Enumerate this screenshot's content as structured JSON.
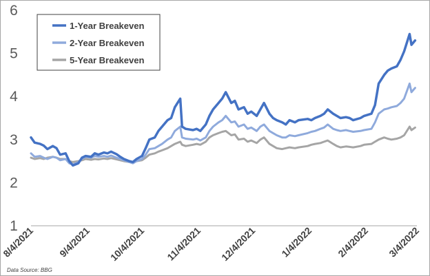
{
  "chart_data": {
    "type": "line",
    "source_note": "Data Source: BBG",
    "ylim": [
      1,
      6
    ],
    "y_ticks": [
      "1",
      "2",
      "3",
      "4",
      "5",
      "6"
    ],
    "x_ticks": [
      "8/4/2021",
      "9/4/2021",
      "10/4/2021",
      "11/4/2021",
      "12/4/2021",
      "1/4/2022",
      "2/4/2022",
      "3/4/2022"
    ],
    "grid": false,
    "legend_position": "top-left",
    "series": [
      {
        "name": "1-Year Breakeven",
        "color": "#4472c4",
        "points": [
          [
            "2021-08-04",
            3.05
          ],
          [
            "2021-08-06",
            2.93
          ],
          [
            "2021-08-09",
            2.9
          ],
          [
            "2021-08-11",
            2.86
          ],
          [
            "2021-08-13",
            2.78
          ],
          [
            "2021-08-16",
            2.85
          ],
          [
            "2021-08-18",
            2.8
          ],
          [
            "2021-08-20",
            2.65
          ],
          [
            "2021-08-23",
            2.68
          ],
          [
            "2021-08-25",
            2.5
          ],
          [
            "2021-08-27",
            2.4
          ],
          [
            "2021-08-30",
            2.45
          ],
          [
            "2021-09-01",
            2.58
          ],
          [
            "2021-09-03",
            2.62
          ],
          [
            "2021-09-06",
            2.6
          ],
          [
            "2021-09-08",
            2.68
          ],
          [
            "2021-09-10",
            2.65
          ],
          [
            "2021-09-13",
            2.7
          ],
          [
            "2021-09-15",
            2.68
          ],
          [
            "2021-09-17",
            2.72
          ],
          [
            "2021-09-20",
            2.66
          ],
          [
            "2021-09-22",
            2.6
          ],
          [
            "2021-09-24",
            2.55
          ],
          [
            "2021-09-27",
            2.5
          ],
          [
            "2021-09-29",
            2.48
          ],
          [
            "2021-10-01",
            2.55
          ],
          [
            "2021-10-04",
            2.62
          ],
          [
            "2021-10-06",
            2.8
          ],
          [
            "2021-10-08",
            3.0
          ],
          [
            "2021-10-11",
            3.05
          ],
          [
            "2021-10-13",
            3.2
          ],
          [
            "2021-10-15",
            3.3
          ],
          [
            "2021-10-18",
            3.45
          ],
          [
            "2021-10-20",
            3.5
          ],
          [
            "2021-10-22",
            3.75
          ],
          [
            "2021-10-25",
            3.95
          ],
          [
            "2021-10-26",
            3.3
          ],
          [
            "2021-10-28",
            3.25
          ],
          [
            "2021-11-01",
            3.22
          ],
          [
            "2021-11-03",
            3.25
          ],
          [
            "2021-11-05",
            3.2
          ],
          [
            "2021-11-08",
            3.35
          ],
          [
            "2021-11-10",
            3.55
          ],
          [
            "2021-11-12",
            3.7
          ],
          [
            "2021-11-15",
            3.85
          ],
          [
            "2021-11-17",
            3.95
          ],
          [
            "2021-11-19",
            4.1
          ],
          [
            "2021-11-22",
            3.85
          ],
          [
            "2021-11-24",
            3.9
          ],
          [
            "2021-11-26",
            3.7
          ],
          [
            "2021-11-29",
            3.75
          ],
          [
            "2021-12-01",
            3.6
          ],
          [
            "2021-12-03",
            3.65
          ],
          [
            "2021-12-06",
            3.55
          ],
          [
            "2021-12-08",
            3.7
          ],
          [
            "2021-12-10",
            3.85
          ],
          [
            "2021-12-13",
            3.6
          ],
          [
            "2021-12-15",
            3.5
          ],
          [
            "2021-12-17",
            3.45
          ],
          [
            "2021-12-20",
            3.4
          ],
          [
            "2021-12-22",
            3.35
          ],
          [
            "2021-12-24",
            3.45
          ],
          [
            "2021-12-27",
            3.4
          ],
          [
            "2021-12-29",
            3.45
          ],
          [
            "2022-01-03",
            3.48
          ],
          [
            "2022-01-05",
            3.45
          ],
          [
            "2022-01-07",
            3.5
          ],
          [
            "2022-01-10",
            3.55
          ],
          [
            "2022-01-12",
            3.6
          ],
          [
            "2022-01-14",
            3.7
          ],
          [
            "2022-01-17",
            3.6
          ],
          [
            "2022-01-19",
            3.55
          ],
          [
            "2022-01-21",
            3.5
          ],
          [
            "2022-01-24",
            3.52
          ],
          [
            "2022-01-26",
            3.5
          ],
          [
            "2022-01-28",
            3.45
          ],
          [
            "2022-02-01",
            3.5
          ],
          [
            "2022-02-03",
            3.55
          ],
          [
            "2022-02-07",
            3.6
          ],
          [
            "2022-02-09",
            3.8
          ],
          [
            "2022-02-11",
            4.3
          ],
          [
            "2022-02-14",
            4.5
          ],
          [
            "2022-02-16",
            4.6
          ],
          [
            "2022-02-18",
            4.65
          ],
          [
            "2022-02-21",
            4.7
          ],
          [
            "2022-02-23",
            4.85
          ],
          [
            "2022-02-25",
            5.05
          ],
          [
            "2022-02-28",
            5.45
          ],
          [
            "2022-03-01",
            5.2
          ],
          [
            "2022-03-03",
            5.3
          ]
        ]
      },
      {
        "name": "2-Year Breakeven",
        "color": "#8faadc",
        "points": [
          [
            "2021-08-04",
            2.68
          ],
          [
            "2021-08-06",
            2.6
          ],
          [
            "2021-08-09",
            2.62
          ],
          [
            "2021-08-11",
            2.58
          ],
          [
            "2021-08-13",
            2.55
          ],
          [
            "2021-08-16",
            2.6
          ],
          [
            "2021-08-18",
            2.58
          ],
          [
            "2021-08-20",
            2.52
          ],
          [
            "2021-08-23",
            2.55
          ],
          [
            "2021-08-25",
            2.45
          ],
          [
            "2021-08-27",
            2.42
          ],
          [
            "2021-08-30",
            2.48
          ],
          [
            "2021-09-01",
            2.55
          ],
          [
            "2021-09-03",
            2.6
          ],
          [
            "2021-09-06",
            2.58
          ],
          [
            "2021-09-08",
            2.62
          ],
          [
            "2021-09-10",
            2.6
          ],
          [
            "2021-09-13",
            2.62
          ],
          [
            "2021-09-15",
            2.6
          ],
          [
            "2021-09-17",
            2.63
          ],
          [
            "2021-09-20",
            2.58
          ],
          [
            "2021-09-22",
            2.55
          ],
          [
            "2021-09-24",
            2.52
          ],
          [
            "2021-09-27",
            2.48
          ],
          [
            "2021-09-29",
            2.45
          ],
          [
            "2021-10-01",
            2.5
          ],
          [
            "2021-10-04",
            2.55
          ],
          [
            "2021-10-06",
            2.65
          ],
          [
            "2021-10-08",
            2.78
          ],
          [
            "2021-10-11",
            2.8
          ],
          [
            "2021-10-13",
            2.85
          ],
          [
            "2021-10-15",
            2.9
          ],
          [
            "2021-10-18",
            3.0
          ],
          [
            "2021-10-20",
            3.05
          ],
          [
            "2021-10-22",
            3.2
          ],
          [
            "2021-10-25",
            3.3
          ],
          [
            "2021-10-26",
            3.05
          ],
          [
            "2021-10-28",
            3.02
          ],
          [
            "2021-11-01",
            3.0
          ],
          [
            "2021-11-03",
            3.02
          ],
          [
            "2021-11-05",
            2.98
          ],
          [
            "2021-11-08",
            3.05
          ],
          [
            "2021-11-10",
            3.2
          ],
          [
            "2021-11-12",
            3.3
          ],
          [
            "2021-11-15",
            3.4
          ],
          [
            "2021-11-17",
            3.45
          ],
          [
            "2021-11-19",
            3.55
          ],
          [
            "2021-11-22",
            3.4
          ],
          [
            "2021-11-24",
            3.42
          ],
          [
            "2021-11-26",
            3.3
          ],
          [
            "2021-11-29",
            3.35
          ],
          [
            "2021-12-01",
            3.25
          ],
          [
            "2021-12-03",
            3.28
          ],
          [
            "2021-12-06",
            3.2
          ],
          [
            "2021-12-08",
            3.3
          ],
          [
            "2021-12-10",
            3.35
          ],
          [
            "2021-12-13",
            3.2
          ],
          [
            "2021-12-15",
            3.15
          ],
          [
            "2021-12-17",
            3.1
          ],
          [
            "2021-12-20",
            3.05
          ],
          [
            "2021-12-22",
            3.05
          ],
          [
            "2021-12-24",
            3.1
          ],
          [
            "2021-12-27",
            3.08
          ],
          [
            "2021-12-29",
            3.1
          ],
          [
            "2022-01-03",
            3.15
          ],
          [
            "2022-01-05",
            3.18
          ],
          [
            "2022-01-07",
            3.2
          ],
          [
            "2022-01-10",
            3.25
          ],
          [
            "2022-01-12",
            3.28
          ],
          [
            "2022-01-14",
            3.35
          ],
          [
            "2022-01-17",
            3.25
          ],
          [
            "2022-01-19",
            3.22
          ],
          [
            "2022-01-21",
            3.2
          ],
          [
            "2022-01-24",
            3.22
          ],
          [
            "2022-01-26",
            3.2
          ],
          [
            "2022-01-28",
            3.18
          ],
          [
            "2022-02-01",
            3.2
          ],
          [
            "2022-02-03",
            3.22
          ],
          [
            "2022-02-07",
            3.25
          ],
          [
            "2022-02-09",
            3.4
          ],
          [
            "2022-02-11",
            3.6
          ],
          [
            "2022-02-14",
            3.7
          ],
          [
            "2022-02-16",
            3.72
          ],
          [
            "2022-02-18",
            3.75
          ],
          [
            "2022-02-21",
            3.78
          ],
          [
            "2022-02-23",
            3.85
          ],
          [
            "2022-02-25",
            3.95
          ],
          [
            "2022-02-28",
            4.3
          ],
          [
            "2022-03-01",
            4.1
          ],
          [
            "2022-03-03",
            4.2
          ]
        ]
      },
      {
        "name": "5-Year Breakeven",
        "color": "#a5a5a5",
        "points": [
          [
            "2021-08-04",
            2.58
          ],
          [
            "2021-08-06",
            2.55
          ],
          [
            "2021-08-09",
            2.57
          ],
          [
            "2021-08-11",
            2.55
          ],
          [
            "2021-08-13",
            2.58
          ],
          [
            "2021-08-16",
            2.6
          ],
          [
            "2021-08-18",
            2.58
          ],
          [
            "2021-08-20",
            2.55
          ],
          [
            "2021-08-23",
            2.55
          ],
          [
            "2021-08-25",
            2.5
          ],
          [
            "2021-08-27",
            2.48
          ],
          [
            "2021-08-30",
            2.5
          ],
          [
            "2021-09-01",
            2.52
          ],
          [
            "2021-09-03",
            2.55
          ],
          [
            "2021-09-06",
            2.53
          ],
          [
            "2021-09-08",
            2.55
          ],
          [
            "2021-09-10",
            2.54
          ],
          [
            "2021-09-13",
            2.56
          ],
          [
            "2021-09-15",
            2.55
          ],
          [
            "2021-09-17",
            2.57
          ],
          [
            "2021-09-20",
            2.54
          ],
          [
            "2021-09-22",
            2.52
          ],
          [
            "2021-09-24",
            2.5
          ],
          [
            "2021-09-27",
            2.48
          ],
          [
            "2021-09-29",
            2.47
          ],
          [
            "2021-10-01",
            2.5
          ],
          [
            "2021-10-04",
            2.52
          ],
          [
            "2021-10-06",
            2.58
          ],
          [
            "2021-10-08",
            2.65
          ],
          [
            "2021-10-11",
            2.68
          ],
          [
            "2021-10-13",
            2.72
          ],
          [
            "2021-10-15",
            2.75
          ],
          [
            "2021-10-18",
            2.8
          ],
          [
            "2021-10-20",
            2.85
          ],
          [
            "2021-10-22",
            2.9
          ],
          [
            "2021-10-25",
            2.95
          ],
          [
            "2021-10-26",
            2.88
          ],
          [
            "2021-10-28",
            2.85
          ],
          [
            "2021-11-01",
            2.88
          ],
          [
            "2021-11-03",
            2.9
          ],
          [
            "2021-11-05",
            2.88
          ],
          [
            "2021-11-08",
            2.95
          ],
          [
            "2021-11-10",
            3.05
          ],
          [
            "2021-11-12",
            3.1
          ],
          [
            "2021-11-15",
            3.15
          ],
          [
            "2021-11-17",
            3.18
          ],
          [
            "2021-11-19",
            3.2
          ],
          [
            "2021-11-22",
            3.1
          ],
          [
            "2021-11-24",
            3.12
          ],
          [
            "2021-11-26",
            3.0
          ],
          [
            "2021-11-29",
            3.02
          ],
          [
            "2021-12-01",
            2.95
          ],
          [
            "2021-12-03",
            2.98
          ],
          [
            "2021-12-06",
            2.92
          ],
          [
            "2021-12-08",
            3.0
          ],
          [
            "2021-12-10",
            3.05
          ],
          [
            "2021-12-13",
            2.9
          ],
          [
            "2021-12-15",
            2.85
          ],
          [
            "2021-12-17",
            2.8
          ],
          [
            "2021-12-20",
            2.78
          ],
          [
            "2021-12-22",
            2.8
          ],
          [
            "2021-12-24",
            2.82
          ],
          [
            "2021-12-27",
            2.8
          ],
          [
            "2021-12-29",
            2.82
          ],
          [
            "2022-01-03",
            2.85
          ],
          [
            "2022-01-05",
            2.88
          ],
          [
            "2022-01-07",
            2.9
          ],
          [
            "2022-01-10",
            2.92
          ],
          [
            "2022-01-12",
            2.95
          ],
          [
            "2022-01-14",
            2.98
          ],
          [
            "2022-01-17",
            2.9
          ],
          [
            "2022-01-19",
            2.85
          ],
          [
            "2022-01-21",
            2.82
          ],
          [
            "2022-01-24",
            2.84
          ],
          [
            "2022-01-26",
            2.83
          ],
          [
            "2022-01-28",
            2.82
          ],
          [
            "2022-02-01",
            2.85
          ],
          [
            "2022-02-03",
            2.88
          ],
          [
            "2022-02-07",
            2.9
          ],
          [
            "2022-02-09",
            2.95
          ],
          [
            "2022-02-11",
            3.0
          ],
          [
            "2022-02-14",
            3.05
          ],
          [
            "2022-02-16",
            3.02
          ],
          [
            "2022-02-18",
            3.0
          ],
          [
            "2022-02-21",
            3.02
          ],
          [
            "2022-02-23",
            3.05
          ],
          [
            "2022-02-25",
            3.1
          ],
          [
            "2022-02-28",
            3.3
          ],
          [
            "2022-03-01",
            3.22
          ],
          [
            "2022-03-03",
            3.28
          ]
        ]
      }
    ]
  }
}
